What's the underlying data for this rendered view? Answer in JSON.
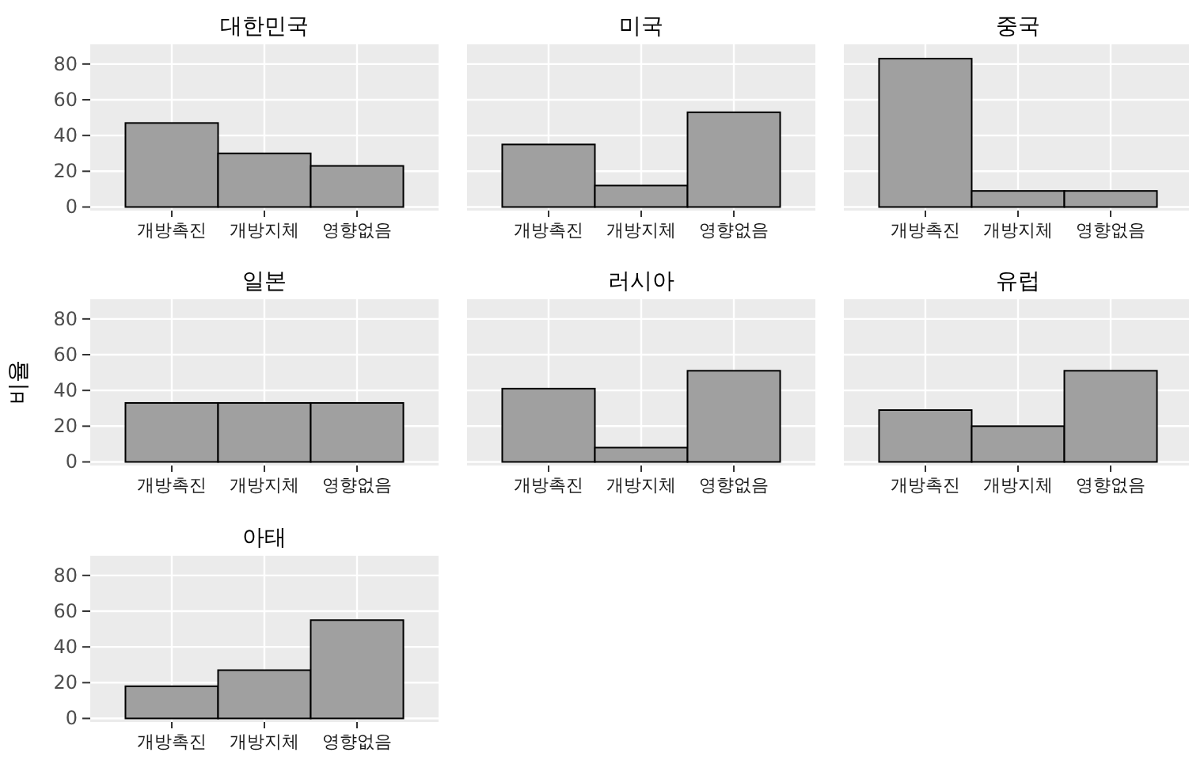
{
  "chart_data": [
    {
      "type": "bar",
      "title": "대한민국",
      "categories": [
        "개방촉진",
        "개방지체",
        "영향없음"
      ],
      "values": [
        47,
        30,
        23
      ],
      "color": "#a0a0a0",
      "ylim": [
        -2,
        91
      ],
      "yticks": [
        0,
        20,
        40,
        60,
        80
      ],
      "grid": true
    },
    {
      "type": "bar",
      "title": "미국",
      "categories": [
        "개방촉진",
        "개방지체",
        "영향없음"
      ],
      "values": [
        35,
        12,
        53
      ],
      "color": "#a0a0a0",
      "ylim": [
        -2,
        91
      ],
      "yticks": [
        0,
        20,
        40,
        60,
        80
      ],
      "grid": true,
      "tick_labels": "x"
    },
    {
      "type": "bar",
      "title": "중국",
      "categories": [
        "개방촉진",
        "개방지체",
        "영향없음"
      ],
      "values": [
        83,
        9,
        9
      ],
      "color": "#a0a0a0",
      "ylim": [
        -2,
        91
      ],
      "yticks": [
        0,
        20,
        40,
        60,
        80
      ],
      "grid": true,
      "tick_labels": "x"
    },
    {
      "type": "bar",
      "title": "일본",
      "ylabel": "비율",
      "categories": [
        "개방촉진",
        "개방지체",
        "영향없음"
      ],
      "values": [
        33,
        33,
        33
      ],
      "color": "#a0a0a0",
      "ylim": [
        -2,
        91
      ],
      "yticks": [
        0,
        20,
        40,
        60,
        80
      ],
      "grid": true
    },
    {
      "type": "bar",
      "title": "러시아",
      "categories": [
        "개방촉진",
        "개방지체",
        "영향없음"
      ],
      "values": [
        41,
        8,
        51
      ],
      "color": "#a0a0a0",
      "ylim": [
        -2,
        91
      ],
      "yticks": [
        0,
        20,
        40,
        60,
        80
      ],
      "grid": true,
      "tick_labels": "x"
    },
    {
      "type": "bar",
      "title": "유럽",
      "categories": [
        "개방촉진",
        "개방지체",
        "영향없음"
      ],
      "values": [
        29,
        20,
        51
      ],
      "color": "#a0a0a0",
      "ylim": [
        -2,
        91
      ],
      "yticks": [
        0,
        20,
        40,
        60,
        80
      ],
      "grid": true,
      "tick_labels": "x"
    },
    {
      "type": "bar",
      "title": "아태",
      "categories": [
        "개방촉진",
        "개방지체",
        "영향없음"
      ],
      "values": [
        18,
        27,
        55
      ],
      "color": "#a0a0a0",
      "ylim": [
        -2,
        91
      ],
      "yticks": [
        0,
        20,
        40,
        60,
        80
      ],
      "grid": true
    }
  ]
}
